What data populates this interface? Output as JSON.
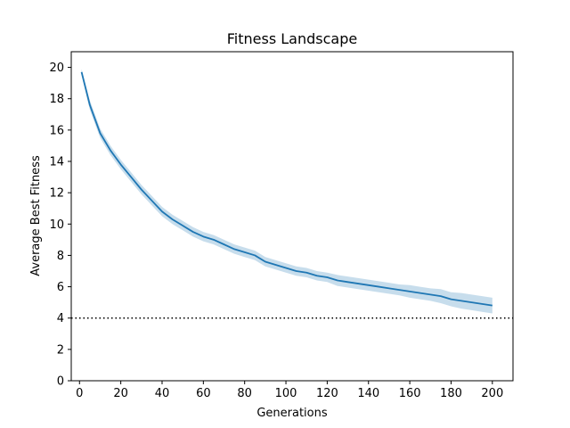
{
  "chart_data": {
    "type": "line",
    "title": "Fitness Landscape",
    "xlabel": "Generations",
    "ylabel": "Average Best Fitness",
    "xlim": [
      -4,
      210
    ],
    "ylim": [
      0,
      21
    ],
    "xticks": [
      0,
      20,
      40,
      60,
      80,
      100,
      120,
      140,
      160,
      180,
      200
    ],
    "yticks": [
      0,
      2,
      4,
      6,
      8,
      10,
      12,
      14,
      16,
      18,
      20
    ],
    "grid": false,
    "legend": "none",
    "series": [
      {
        "x": [
          1,
          5,
          10,
          15,
          20,
          25,
          30,
          35,
          40,
          45,
          50,
          55,
          60,
          65,
          70,
          75,
          80,
          85,
          90,
          95,
          100,
          105,
          110,
          115,
          120,
          125,
          130,
          135,
          140,
          145,
          150,
          155,
          160,
          165,
          170,
          175,
          180,
          185,
          190,
          195,
          200
        ],
        "values": [
          19.7,
          17.6,
          15.8,
          14.7,
          13.8,
          13.0,
          12.2,
          11.5,
          10.8,
          10.3,
          9.9,
          9.5,
          9.2,
          9.0,
          8.7,
          8.4,
          8.2,
          8.0,
          7.6,
          7.4,
          7.2,
          7.0,
          6.9,
          6.7,
          6.6,
          6.4,
          6.3,
          6.2,
          6.1,
          6.0,
          5.9,
          5.8,
          5.7,
          5.6,
          5.5,
          5.4,
          5.2,
          5.1,
          5.0,
          4.9,
          4.8
        ],
        "band_halfwidth": [
          0.2,
          0.3,
          0.3,
          0.3,
          0.3,
          0.3,
          0.3,
          0.3,
          0.3,
          0.3,
          0.3,
          0.3,
          0.3,
          0.3,
          0.3,
          0.3,
          0.3,
          0.3,
          0.3,
          0.3,
          0.3,
          0.3,
          0.3,
          0.3,
          0.3,
          0.35,
          0.35,
          0.35,
          0.35,
          0.35,
          0.35,
          0.35,
          0.4,
          0.4,
          0.4,
          0.45,
          0.45,
          0.5,
          0.5,
          0.5,
          0.5
        ],
        "color": "#1f77b4"
      }
    ],
    "reference_line": {
      "y": 4,
      "style": "dotted",
      "color": "#000000"
    }
  }
}
